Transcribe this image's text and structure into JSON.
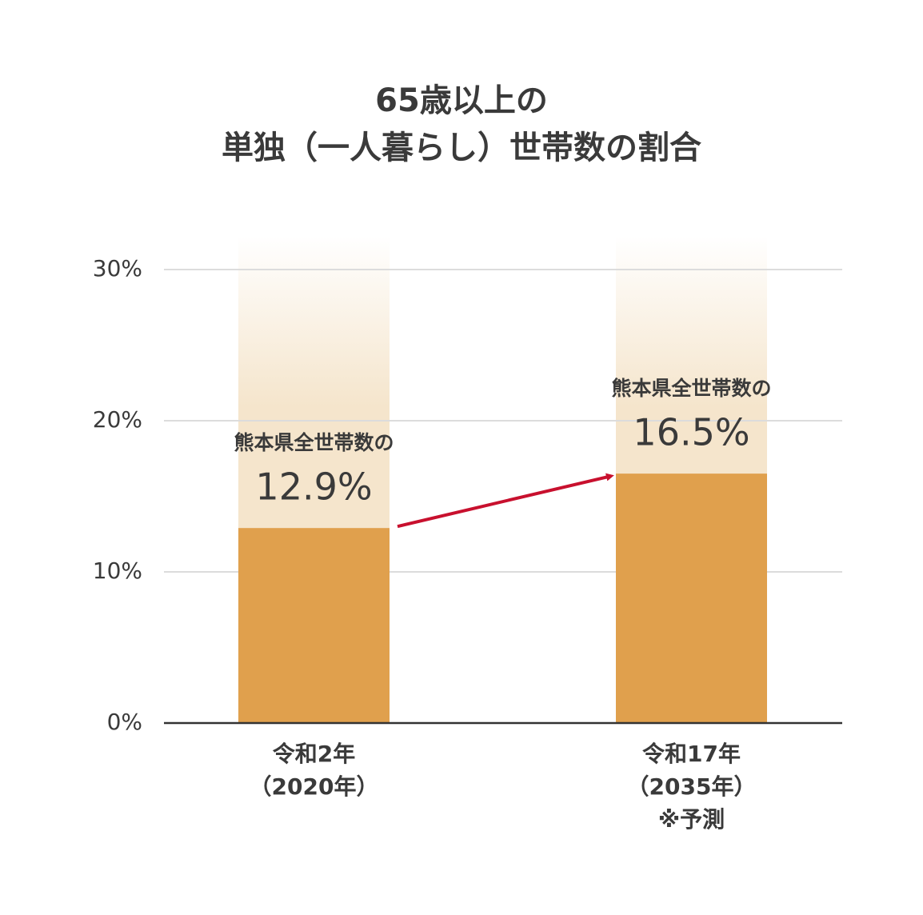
{
  "chart_data": {
    "type": "bar",
    "title": [
      "65歳以上の",
      "単独（一人暮らし）世帯数の割合"
    ],
    "categories": [
      [
        "令和2年",
        "（2020年）"
      ],
      [
        "令和17年",
        "（2035年）",
        "※予測"
      ]
    ],
    "values": [
      12.9,
      16.5
    ],
    "value_labels": [
      "12.9%",
      "16.5%"
    ],
    "bar_notes": [
      "熊本県全世帯数の",
      "熊本県全世帯数の"
    ],
    "color": "#e0a04d",
    "ylim": [
      0,
      30
    ],
    "yticks": [
      {
        "value": 0,
        "label": "0%"
      },
      {
        "value": 10,
        "label": "10%"
      },
      {
        "value": 20,
        "label": "20%"
      },
      {
        "value": 30,
        "label": "30%"
      }
    ],
    "grid": true
  }
}
